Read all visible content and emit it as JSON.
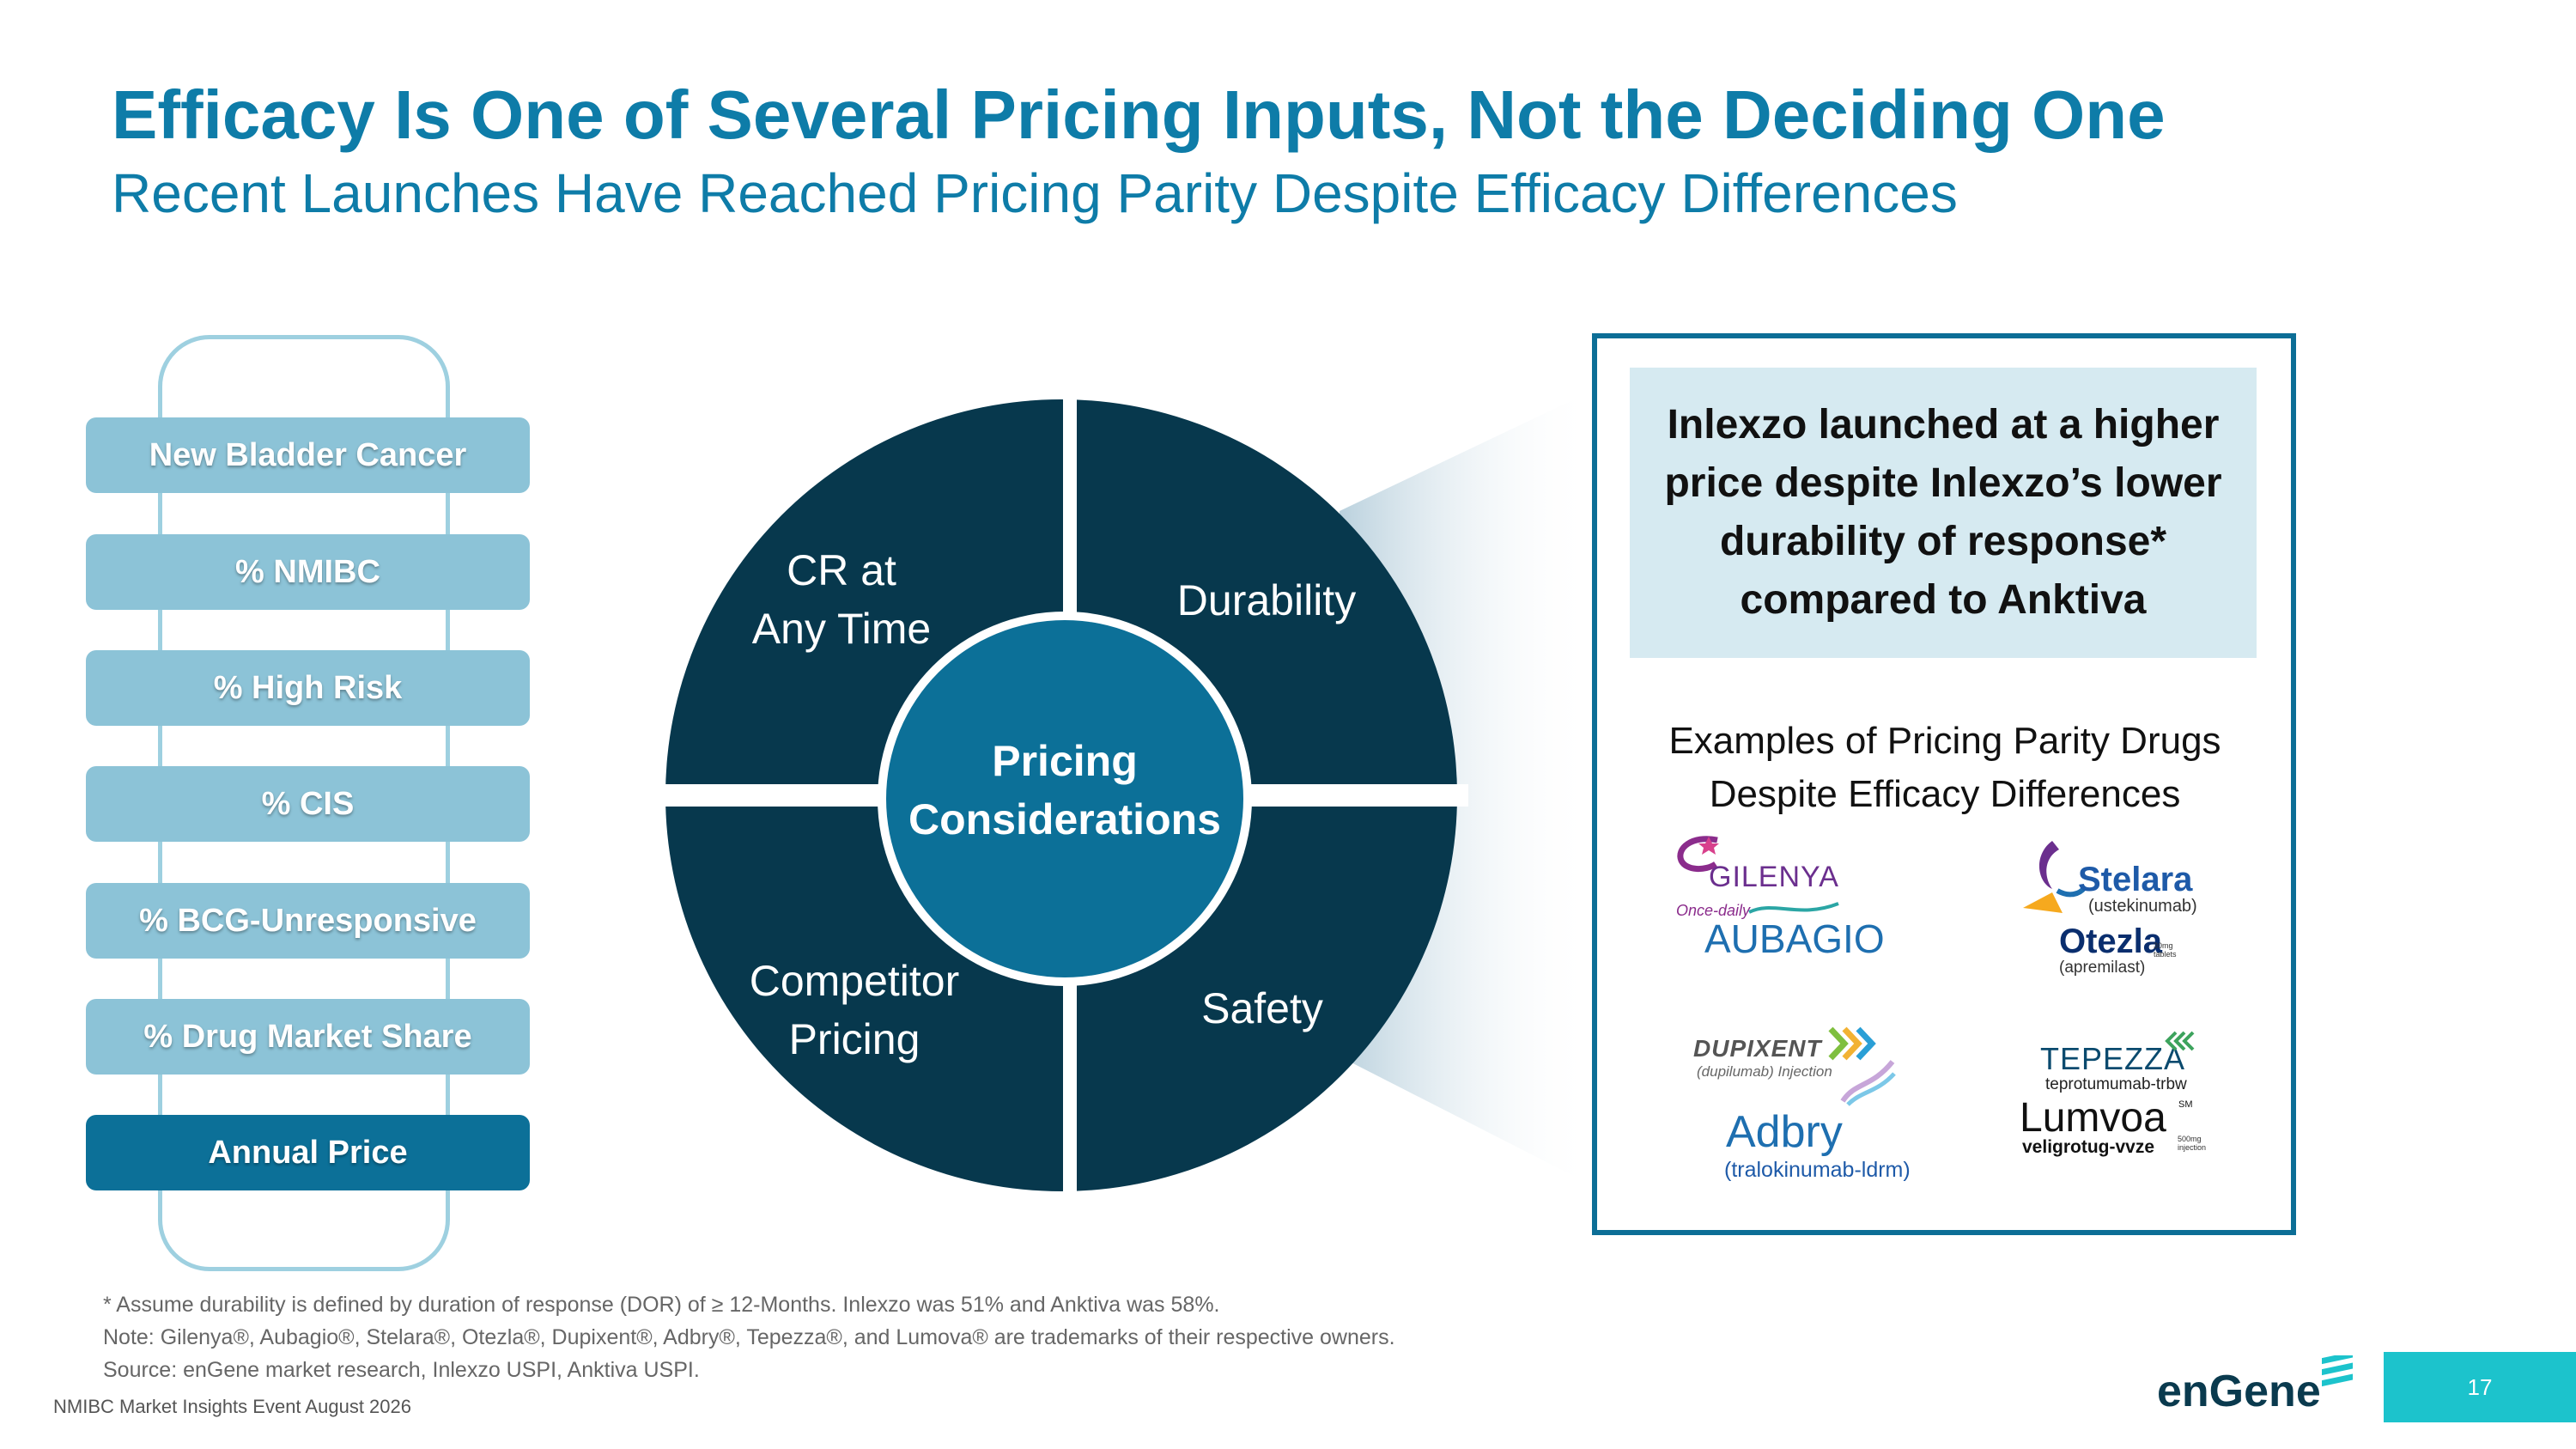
{
  "title": "Efficacy Is One of Several Pricing Inputs, Not the Deciding One",
  "subtitle": "Recent Launches Have Reached Pricing Parity Despite Efficacy Differences",
  "funnel": {
    "steps": [
      {
        "label": "New Bladder Cancer"
      },
      {
        "label": "% NMIBC"
      },
      {
        "label": "% High Risk"
      },
      {
        "label": "% CIS"
      },
      {
        "label": "% BCG-Unresponsive"
      },
      {
        "label": "% Drug Market Share"
      },
      {
        "label": "Annual Price"
      }
    ]
  },
  "wheel": {
    "center_line1": "Pricing",
    "center_line2": "Considerations",
    "q_top_left_1": "CR at",
    "q_top_left_2": "Any Time",
    "q_top_right": "Durability",
    "q_bottom_left_1": "Competitor",
    "q_bottom_left_2": "Pricing",
    "q_bottom_right": "Safety"
  },
  "callout": {
    "headline": "Inlexzo launched at a higher price despite Inlexzo’s lower durability of response* compared to Anktiva",
    "examples_line1": "Examples of Pricing Parity Drugs",
    "examples_line2": "Despite Efficacy Differences"
  },
  "logos": {
    "gilenya": "GILENYA",
    "aubagio_tag": "Once-daily",
    "aubagio": "AUBAGIO",
    "stelara": "Stelara",
    "stelara_sub": "(ustekinumab)",
    "otezla": "Otezla",
    "otezla_sub": "(apremilast)",
    "otezla_dose": "30mg tablets",
    "dupixent": "DUPIXENT",
    "dupixent_sub": "(dupilumab) Injection",
    "adbry": "Adbry",
    "adbry_sub": "(tralokinumab-ldrm)",
    "tepezza": "TEPEZZA",
    "tepezza_sub": "teprotumumab-trbw",
    "lumvoa": "Lumvoa",
    "lumvoa_sub": "veligrotug-vvze",
    "lumvoa_dose": "500mg injection",
    "lumvoa_tm": "SM"
  },
  "footnotes": [
    "* Assume durability is defined by duration of response (DOR) of ≥ 12-Months. Inlexzo was 51% and Anktiva was 58%.",
    "Note: Gilenya®, Aubagio®, Stelara®, Otezla®, Dupixent®, Adbry®, Tepezza®, and Lumova® are trademarks of their respective owners.",
    "Source: enGene market research, Inlexzo USPI, Anktiva USPI."
  ],
  "footer": "NMIBC Market Insights Event August 2026",
  "brand": "enGene",
  "page_number": "17",
  "colors": {
    "title": "#0E7CA8",
    "wheel_dark": "#07384D",
    "wheel_center": "#0C7098",
    "step": "#8CC3D7",
    "step_final": "#0C7098",
    "page_box": "#1CC3CC"
  }
}
